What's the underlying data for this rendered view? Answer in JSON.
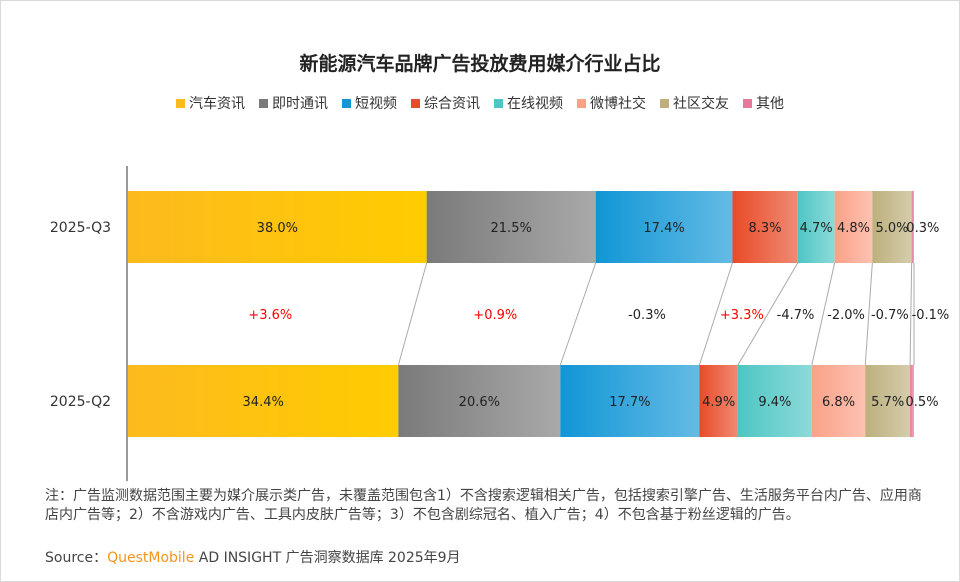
{
  "chart_data": {
    "type": "bar",
    "orientation": "horizontal",
    "stacked": true,
    "percent": true,
    "title": "新能源汽车品牌广告投放费用媒介行业占比",
    "categories": [
      "2025-Q3",
      "2025-Q2"
    ],
    "legend_position": "top",
    "grid": false,
    "series": [
      {
        "name": "汽车资讯",
        "values": [
          38.0,
          34.4
        ],
        "change": "+3.6%",
        "color": "#FDBA1E"
      },
      {
        "name": "即时通讯",
        "values": [
          21.5,
          20.6
        ],
        "change": "+0.9%",
        "color": "#7A7A7A"
      },
      {
        "name": "短视频",
        "values": [
          17.4,
          17.7
        ],
        "change": "-0.3%",
        "color": "#1196D6"
      },
      {
        "name": "综合资讯",
        "values": [
          8.3,
          4.9
        ],
        "change": "+3.3%",
        "color": "#E84B28"
      },
      {
        "name": "在线视频",
        "values": [
          4.7,
          9.4
        ],
        "change": "-4.7%",
        "color": "#4EC6C4"
      },
      {
        "name": "微博社交",
        "values": [
          4.8,
          6.8
        ],
        "change": "-2.0%",
        "color": "#FBA188"
      },
      {
        "name": "社区交友",
        "values": [
          5.0,
          5.7
        ],
        "change": "-0.7%",
        "color": "#BDB07D"
      },
      {
        "name": "其他",
        "values": [
          0.3,
          0.5
        ],
        "change": "-0.1%",
        "color": "#E6789A"
      }
    ],
    "positive_change_color": "#FF0000"
  },
  "note": "注：广告监测数据范围主要为媒介展示类广告，未覆盖范围包含1）不含搜索逻辑相关广告，包括搜索引擎广告、生活服务平台内广告、应用商店内广告等；2）不含游戏内广告、工具内皮肤广告等；3）不包含剧综冠名、植入广告；4）不包含基于粉丝逻辑的广告。",
  "source": {
    "label": "Source：",
    "brand": "QuestMobile",
    "text": " AD INSIGHT 广告洞察数据库 2025年9月"
  }
}
